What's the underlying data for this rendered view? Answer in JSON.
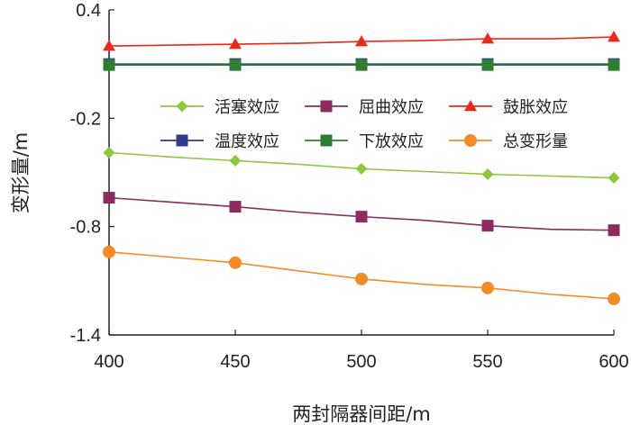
{
  "chart_data": {
    "type": "line",
    "title": "",
    "xlabel": "两封隔器间距/m",
    "ylabel": "变形量/m",
    "x": [
      400,
      450,
      500,
      550,
      600
    ],
    "xlim": [
      400,
      600
    ],
    "ylim": [
      -1.4,
      0.4
    ],
    "xticks": [
      "400",
      "450",
      "500",
      "550",
      "600"
    ],
    "yticks": [
      "0.4",
      "-0.2",
      "-0.8",
      "-1.4"
    ],
    "ytick_values": [
      0.4,
      -0.2,
      -0.8,
      -1.4
    ],
    "grid": false,
    "legend_position": "upper-middle",
    "series": [
      {
        "name": "活塞效应",
        "color": "#8dc63f",
        "marker": "diamond",
        "x": [
          400,
          425,
          450,
          475,
          500,
          525,
          550,
          575,
          600
        ],
        "values": [
          -0.39,
          -0.415,
          -0.435,
          -0.455,
          -0.48,
          -0.495,
          -0.51,
          -0.52,
          -0.53
        ]
      },
      {
        "name": "屈曲效应",
        "color": "#8e2a5e",
        "marker": "square",
        "x": [
          400,
          425,
          450,
          475,
          500,
          525,
          550,
          575,
          600
        ],
        "values": [
          -0.64,
          -0.665,
          -0.69,
          -0.72,
          -0.745,
          -0.765,
          -0.795,
          -0.815,
          -0.82
        ]
      },
      {
        "name": "鼓胀效应",
        "color": "#e8291c",
        "marker": "triangle",
        "x": [
          400,
          425,
          450,
          475,
          500,
          525,
          550,
          575,
          600
        ],
        "values": [
          0.2,
          0.205,
          0.21,
          0.215,
          0.225,
          0.23,
          0.24,
          0.24,
          0.25
        ]
      },
      {
        "name": "温度效应",
        "color": "#2e3a8c",
        "marker": "square",
        "x": [
          400,
          425,
          450,
          475,
          500,
          525,
          550,
          575,
          600
        ],
        "values": [
          0.1,
          0.1,
          0.1,
          0.1,
          0.1,
          0.1,
          0.1,
          0.1,
          0.1
        ]
      },
      {
        "name": "下放效应",
        "color": "#2f7d32",
        "marker": "square",
        "x": [
          400,
          425,
          450,
          475,
          500,
          525,
          550,
          575,
          600
        ],
        "values": [
          0.095,
          0.095,
          0.095,
          0.095,
          0.095,
          0.095,
          0.095,
          0.095,
          0.095
        ]
      },
      {
        "name": "总变形量",
        "color": "#f28c28",
        "marker": "circle",
        "x": [
          400,
          425,
          450,
          475,
          500,
          525,
          550,
          575,
          600
        ],
        "values": [
          -0.94,
          -0.97,
          -1.0,
          -1.045,
          -1.09,
          -1.12,
          -1.14,
          -1.175,
          -1.2
        ]
      }
    ]
  }
}
